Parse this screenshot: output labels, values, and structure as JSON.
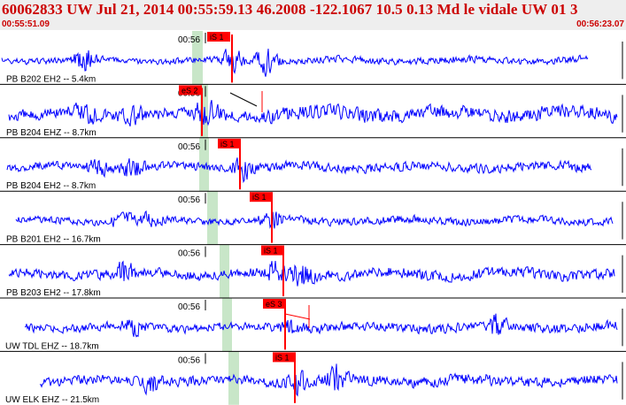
{
  "header": {
    "title": "60062833 UW Jul 21, 2014 00:55:59.13    46.2008 -122.1067 10.5 0.13 Md le vidale UW 01    3",
    "start_time": "00:55:51.09",
    "end_time": "00:56:23.07"
  },
  "colors": {
    "waveform": "#0000ff",
    "pick": "#ff0000",
    "pick_window": "#c8e6c8",
    "header_text": "#cc0000",
    "header_bg": "#eeeeee"
  },
  "traces": [
    {
      "station_label": "PB B202 EH2 -- 5.4km",
      "time_tick": "00:56",
      "pick_label": "iS 1",
      "amplitude": 0.45,
      "burst_amp": 2.2,
      "burst_seed": 3
    },
    {
      "station_label": "PB B204 EHZ -- 8.7km",
      "time_tick": "00:56",
      "pick_label": "eS 2",
      "amplitude": 0.9,
      "burst_amp": 1.6,
      "burst_seed": 7
    },
    {
      "station_label": "PB B204 EH2 -- 8.7km",
      "time_tick": "00:56",
      "pick_label": "iS 1",
      "amplitude": 0.6,
      "burst_amp": 1.8,
      "burst_seed": 11
    },
    {
      "station_label": "PB B201 EH2 -- 16.7km",
      "time_tick": "00:56",
      "pick_label": "iS 1",
      "amplitude": 0.5,
      "burst_amp": 1.5,
      "burst_seed": 13
    },
    {
      "station_label": "PB B203 EH2 -- 17.8km",
      "time_tick": "00:56",
      "pick_label": "iS 1",
      "amplitude": 0.7,
      "burst_amp": 1.7,
      "burst_seed": 17
    },
    {
      "station_label": "UW TDL EHZ -- 18.7km",
      "time_tick": "00:56",
      "pick_label": "eS 3",
      "amplitude": 0.6,
      "burst_amp": 1.4,
      "burst_seed": 19
    },
    {
      "station_label": "UW ELK EHZ -- 21.5km",
      "time_tick": "00:56",
      "pick_label": "iS 1",
      "amplitude": 0.7,
      "burst_amp": 1.8,
      "burst_seed": 23
    }
  ]
}
